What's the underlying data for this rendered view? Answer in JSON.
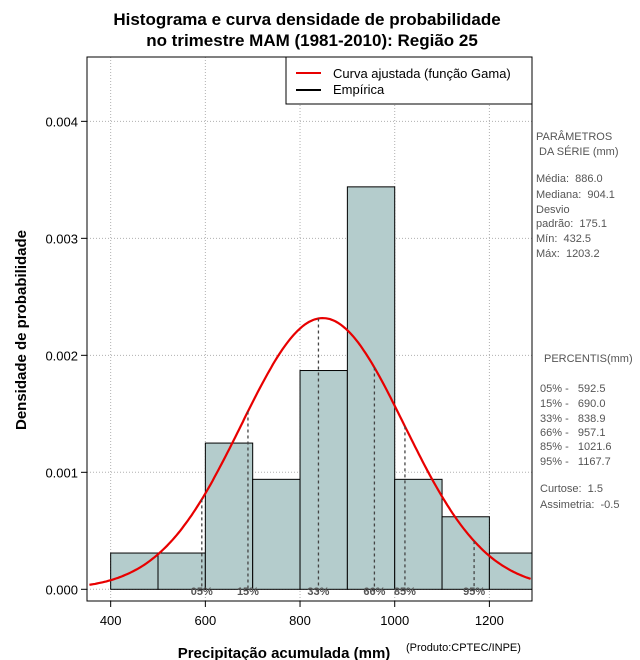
{
  "chart_data": {
    "type": "bar",
    "title": [
      "Histograma e curva densidade de probabilidade",
      "no trimestre MAM (1981-2010): Região 25"
    ],
    "xlabel": "Precipitação acumulada (mm)",
    "ylabel": "Densidade de probabilidade",
    "xlim": [
      350,
      1290
    ],
    "ylim": [
      -0.0001,
      0.00455
    ],
    "x_ticks": [
      400,
      600,
      800,
      1000,
      1200
    ],
    "y_ticks": [
      0.0,
      0.001,
      0.002,
      0.003,
      0.004
    ],
    "y_tick_labels": [
      "0.000",
      "0.001",
      "0.002",
      "0.003",
      "0.004"
    ],
    "grid": true,
    "bins": [
      {
        "start": 400,
        "end": 500,
        "density": 0.00031
      },
      {
        "start": 500,
        "end": 600,
        "density": 0.00031
      },
      {
        "start": 600,
        "end": 700,
        "density": 0.00125
      },
      {
        "start": 700,
        "end": 800,
        "density": 0.00094
      },
      {
        "start": 800,
        "end": 900,
        "density": 0.00187
      },
      {
        "start": 900,
        "end": 1000,
        "density": 0.00344
      },
      {
        "start": 1000,
        "end": 1100,
        "density": 0.00094
      },
      {
        "start": 1100,
        "end": 1200,
        "density": 0.00062
      },
      {
        "start": 1200,
        "end": 1300,
        "density": 0.00031
      }
    ],
    "curve": {
      "name": "Curva ajustada (função Gama)",
      "mean": 886.0,
      "sd": 175.1,
      "color": "#e80000"
    },
    "percentiles": [
      {
        "label": "05%",
        "value": 592.5
      },
      {
        "label": "15%",
        "value": 690.0
      },
      {
        "label": "33%",
        "value": 838.9
      },
      {
        "label": "66%",
        "value": 957.1
      },
      {
        "label": "85%",
        "value": 1021.6
      },
      {
        "label": "95%",
        "value": 1167.7
      }
    ],
    "legend": [
      {
        "label": "Curva ajustada (função Gama)",
        "color": "#e80000"
      },
      {
        "label": "Empírica",
        "color": "#000000"
      }
    ],
    "colors": {
      "bar_fill": "#b4cccc",
      "bar_stroke": "#000000",
      "grid": "#b0b0b0"
    }
  },
  "side_panel": {
    "params_title": [
      "PARÂMETROS",
      " DA SÉRIE (mm)"
    ],
    "params": [
      "Média:  886.0",
      "Mediana:  904.1",
      "Desvio",
      "padrão:  175.1",
      "Mín:  432.5",
      "Máx:  1203.2"
    ],
    "percentis_title": "PERCENTIS(mm)",
    "percentis": [
      "05% -   592.5",
      "15% -   690.0",
      "33% -   838.9",
      "66% -   957.1",
      "85% -   1021.6",
      "95% -   1167.7"
    ],
    "stats": [
      "Curtose:  1.5",
      "Assimetria:  -0.5"
    ]
  },
  "credit": "(Produto:CPTEC/INPE)"
}
